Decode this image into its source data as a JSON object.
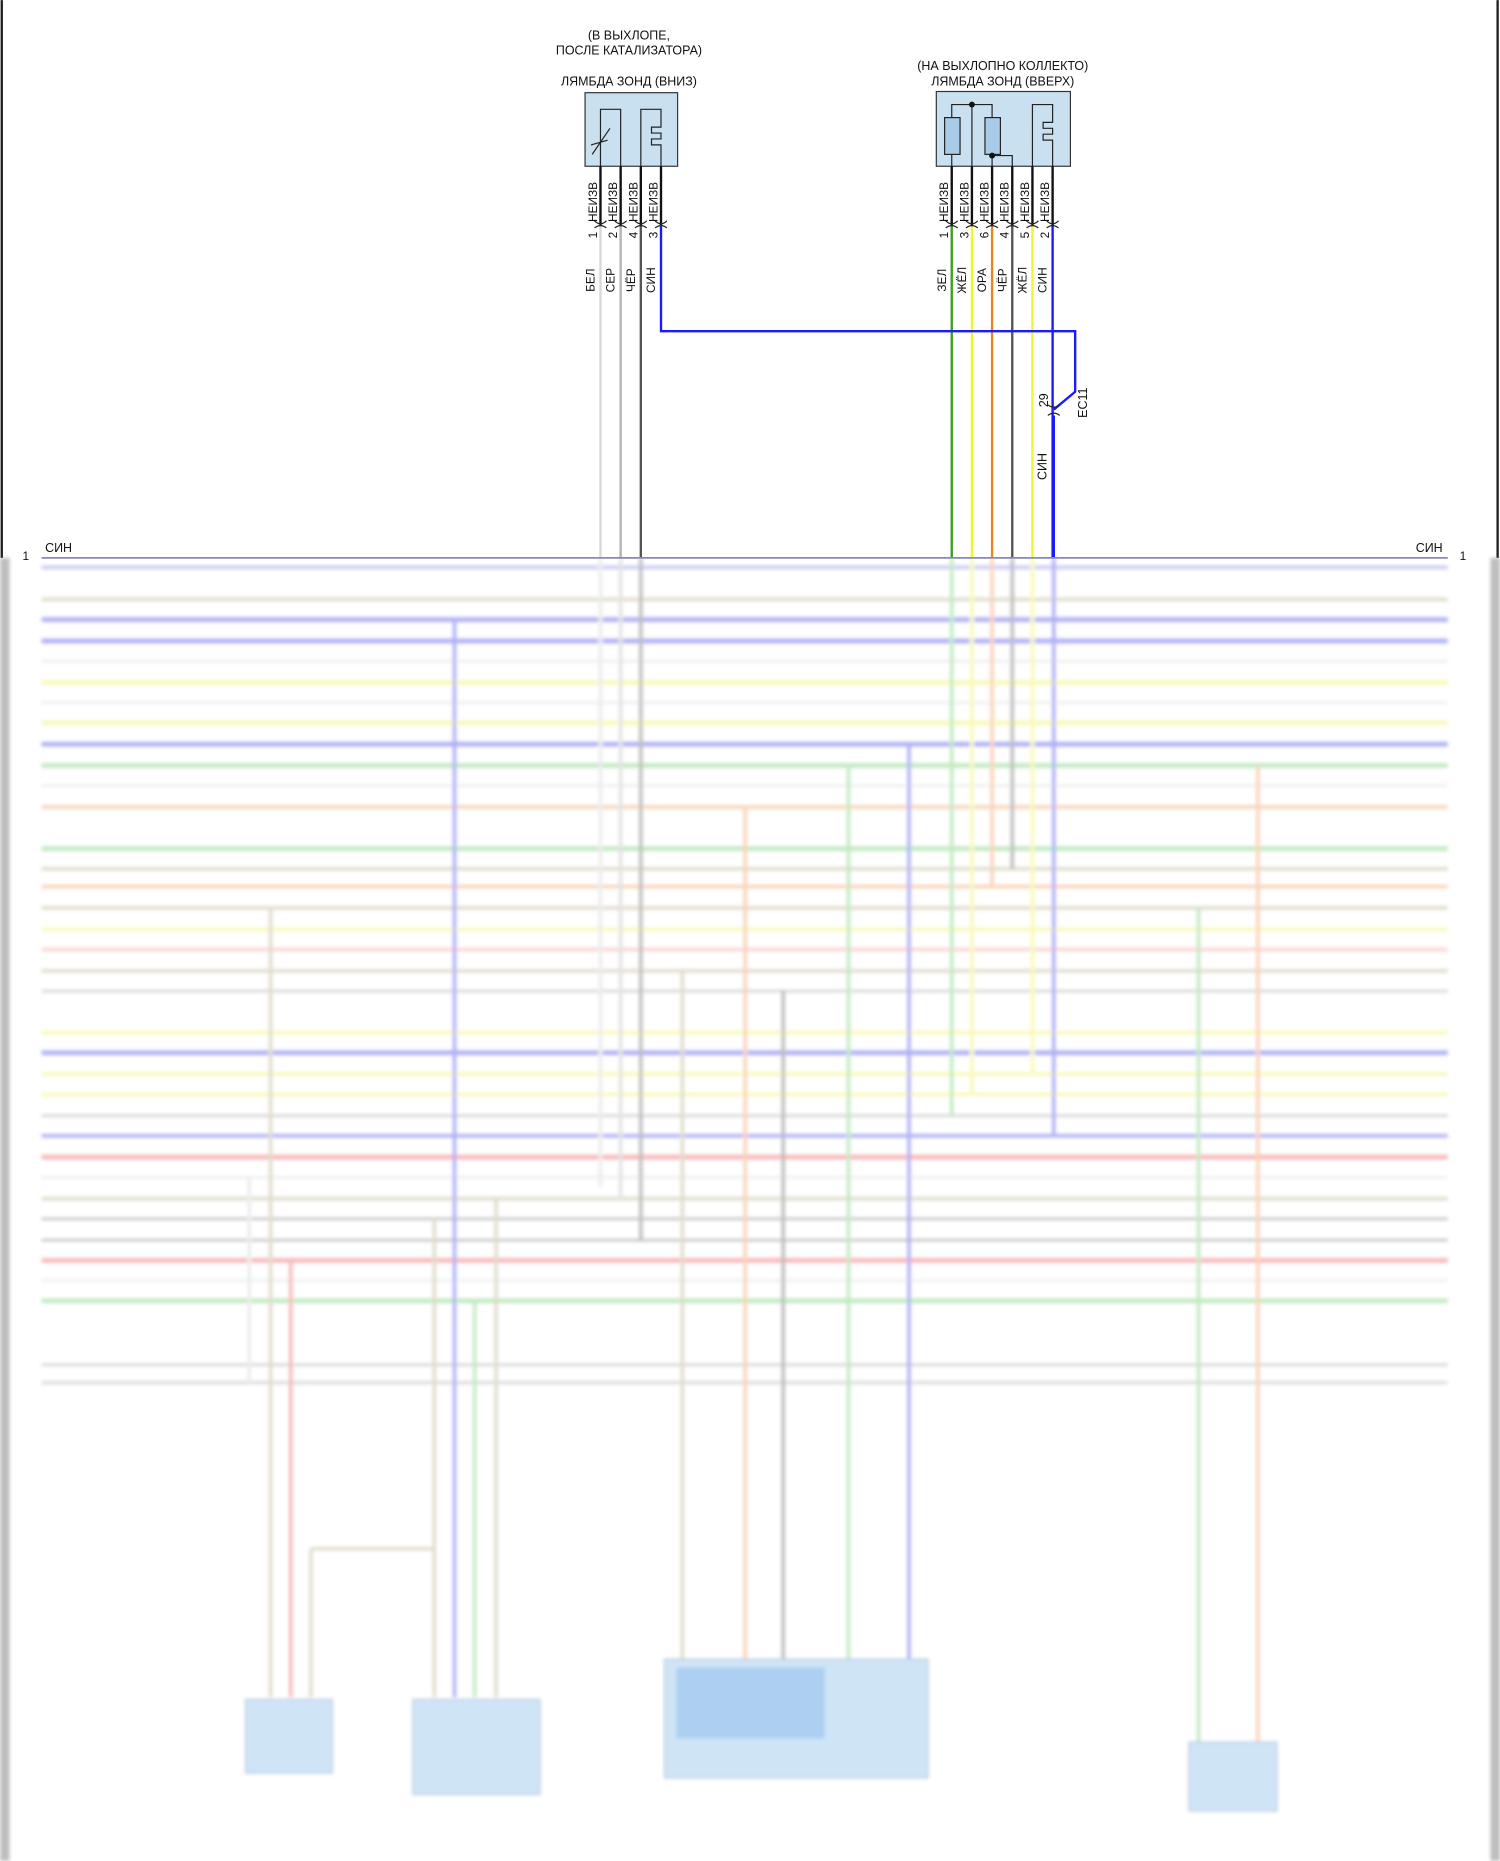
{
  "sensor_down": {
    "note_line1": "(В ВЫХЛОПЕ,",
    "note_line2": "ПОСЛЕ КАТАЛИЗАТОРА)",
    "title": "ЛЯМБДА ЗОНД (ВНИЗ)",
    "pins": [
      {
        "pin": "1",
        "type": "НЕИЗВ",
        "color": "БЕЛ",
        "hex": "#d8d8d8"
      },
      {
        "pin": "2",
        "type": "НЕИЗВ",
        "color": "СЕР",
        "hex": "#b4b4b4"
      },
      {
        "pin": "4",
        "type": "НЕИЗВ",
        "color": "ЧЁР",
        "hex": "#555555"
      },
      {
        "pin": "3",
        "type": "НЕИЗВ",
        "color": "СИН",
        "hex": "#1a1aff"
      }
    ]
  },
  "sensor_up": {
    "note_line1": "(НА ВЫХЛОПНО КОЛЛЕКТО)",
    "title": "ЛЯМБДА ЗОНД (ВВЕРХ)",
    "pins": [
      {
        "pin": "1",
        "type": "НЕИЗВ",
        "color": "ЗЕЛ",
        "hex": "#3aa020"
      },
      {
        "pin": "3",
        "type": "НЕИЗВ",
        "color": "ЖЁЛ",
        "hex": "#f4f430"
      },
      {
        "pin": "6",
        "type": "НЕИЗВ",
        "color": "ОРА",
        "hex": "#e08a1e"
      },
      {
        "pin": "4",
        "type": "НЕИЗВ",
        "color": "ЧЁР",
        "hex": "#555555"
      },
      {
        "pin": "5",
        "type": "НЕИЗВ",
        "color": "ЖЁЛ",
        "hex": "#f4f430"
      },
      {
        "pin": "2",
        "type": "НЕИЗВ",
        "color": "СИН",
        "hex": "#1a1aff"
      }
    ]
  },
  "connector_ec11": {
    "name": "EC11",
    "pin": "29",
    "wire_color": "СИН"
  },
  "bus": {
    "left_label": "СИН",
    "left_pin": "1",
    "right_label": "СИН",
    "right_pin": "1"
  },
  "colors": {
    "box_fill": "#c8e0f0",
    "blue": "#1a1aff"
  }
}
